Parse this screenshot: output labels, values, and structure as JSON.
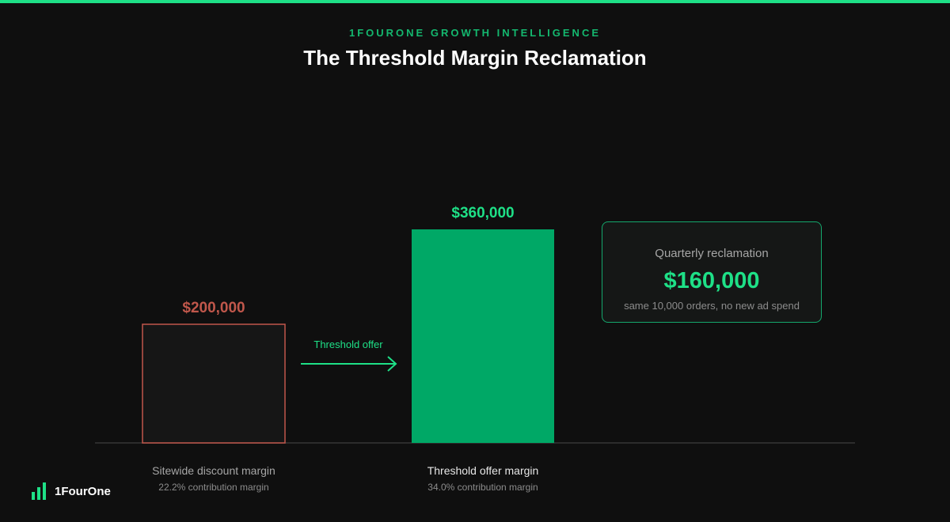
{
  "header": {
    "eyebrow": "1FOURONE GROWTH INTELLIGENCE",
    "title": "The Threshold Margin Reclamation"
  },
  "colors": {
    "accent": "#1ee087",
    "bar_primary": "#00a866",
    "negative": "#c0574b",
    "background": "#0f0f0f"
  },
  "chart_data": {
    "type": "bar",
    "categories": [
      "Sitewide discount margin",
      "Threshold offer margin"
    ],
    "values": [
      200000,
      360000
    ],
    "value_labels": [
      "$200,000",
      "$360,000"
    ],
    "subtitles": [
      "22.2% contribution margin",
      "34.0% contribution margin"
    ],
    "ylim": [
      0,
      400000
    ],
    "grid": false,
    "transition_label": "Threshold offer"
  },
  "callout": {
    "label": "Quarterly reclamation",
    "value": "$160,000",
    "note": "same 10,000 orders, no new ad spend"
  },
  "logo": {
    "text": "1FourOne",
    "icon": "bar-chart-icon"
  }
}
